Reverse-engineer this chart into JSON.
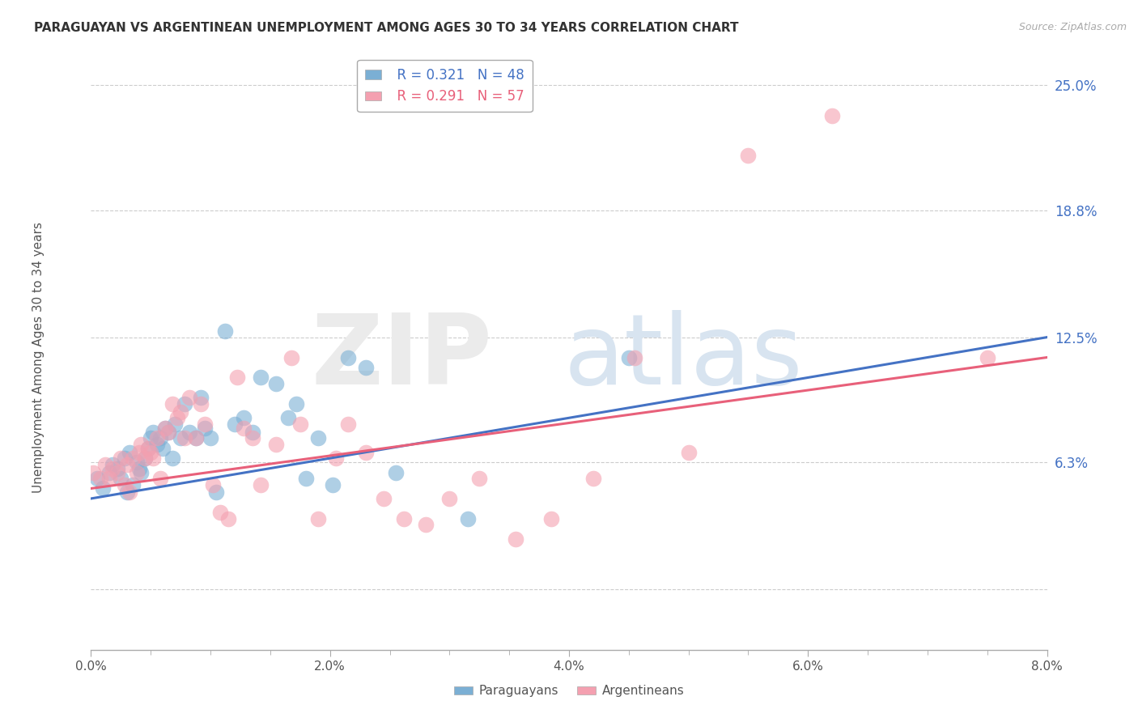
{
  "title": "PARAGUAYAN VS ARGENTINEAN UNEMPLOYMENT AMONG AGES 30 TO 34 YEARS CORRELATION CHART",
  "source": "Source: ZipAtlas.com",
  "ylabel": "Unemployment Among Ages 30 to 34 years",
  "x_tick_labels": [
    "0.0%",
    "",
    "",
    "",
    "2.0%",
    "",
    "",
    "",
    "4.0%",
    "",
    "",
    "",
    "6.0%",
    "",
    "",
    "",
    "8.0%"
  ],
  "x_tick_values": [
    0.0,
    0.5,
    1.0,
    1.5,
    2.0,
    2.5,
    3.0,
    3.5,
    4.0,
    4.5,
    5.0,
    5.5,
    6.0,
    6.5,
    7.0,
    7.5,
    8.0
  ],
  "y_tick_labels": [
    "",
    "6.3%",
    "12.5%",
    "18.8%",
    "25.0%"
  ],
  "y_tick_values": [
    0.0,
    6.3,
    12.5,
    18.8,
    25.0
  ],
  "xlim": [
    0.0,
    8.0
  ],
  "ylim": [
    -3.0,
    26.0
  ],
  "legend_blue_r": "R = 0.321",
  "legend_blue_n": "N = 48",
  "legend_pink_r": "R = 0.291",
  "legend_pink_n": "N = 57",
  "blue_color": "#7BAFD4",
  "pink_color": "#F4A0B0",
  "blue_line_color": "#4472C4",
  "pink_line_color": "#E8607A",
  "paraguayan_x": [
    0.05,
    0.1,
    0.15,
    0.18,
    0.22,
    0.25,
    0.28,
    0.3,
    0.32,
    0.35,
    0.38,
    0.4,
    0.42,
    0.45,
    0.48,
    0.5,
    0.52,
    0.55,
    0.58,
    0.6,
    0.62,
    0.65,
    0.68,
    0.7,
    0.75,
    0.78,
    0.82,
    0.88,
    0.92,
    0.95,
    1.0,
    1.05,
    1.12,
    1.2,
    1.28,
    1.35,
    1.42,
    1.55,
    1.65,
    1.72,
    1.8,
    1.9,
    2.02,
    2.15,
    2.3,
    2.55,
    3.15,
    4.5
  ],
  "paraguayan_y": [
    5.5,
    5.0,
    5.8,
    6.2,
    6.0,
    5.5,
    6.5,
    4.8,
    6.8,
    5.2,
    6.3,
    6.0,
    5.8,
    6.5,
    7.0,
    7.5,
    7.8,
    7.2,
    7.5,
    7.0,
    8.0,
    7.8,
    6.5,
    8.2,
    7.5,
    9.2,
    7.8,
    7.5,
    9.5,
    8.0,
    7.5,
    4.8,
    12.8,
    8.2,
    8.5,
    7.8,
    10.5,
    10.2,
    8.5,
    9.2,
    5.5,
    7.5,
    5.2,
    11.5,
    11.0,
    5.8,
    3.5,
    11.5
  ],
  "argentinean_x": [
    0.02,
    0.08,
    0.12,
    0.15,
    0.18,
    0.22,
    0.25,
    0.28,
    0.3,
    0.32,
    0.35,
    0.38,
    0.4,
    0.42,
    0.45,
    0.48,
    0.5,
    0.52,
    0.55,
    0.58,
    0.62,
    0.65,
    0.68,
    0.72,
    0.75,
    0.78,
    0.82,
    0.88,
    0.92,
    0.95,
    1.02,
    1.08,
    1.15,
    1.22,
    1.28,
    1.35,
    1.42,
    1.55,
    1.68,
    1.75,
    1.9,
    2.05,
    2.15,
    2.3,
    2.45,
    2.62,
    2.8,
    3.0,
    3.25,
    3.55,
    3.85,
    4.2,
    4.55,
    5.0,
    5.5,
    6.2,
    7.5
  ],
  "argentinean_y": [
    5.8,
    5.5,
    6.2,
    5.5,
    6.0,
    5.8,
    6.5,
    5.2,
    6.2,
    4.8,
    6.5,
    5.8,
    6.8,
    7.2,
    6.5,
    7.0,
    6.8,
    6.5,
    7.5,
    5.5,
    8.0,
    7.8,
    9.2,
    8.5,
    8.8,
    7.5,
    9.5,
    7.5,
    9.2,
    8.2,
    5.2,
    3.8,
    3.5,
    10.5,
    8.0,
    7.5,
    5.2,
    7.2,
    11.5,
    8.2,
    3.5,
    6.5,
    8.2,
    6.8,
    4.5,
    3.5,
    3.2,
    4.5,
    5.5,
    2.5,
    3.5,
    5.5,
    11.5,
    6.8,
    21.5,
    23.5,
    11.5
  ]
}
